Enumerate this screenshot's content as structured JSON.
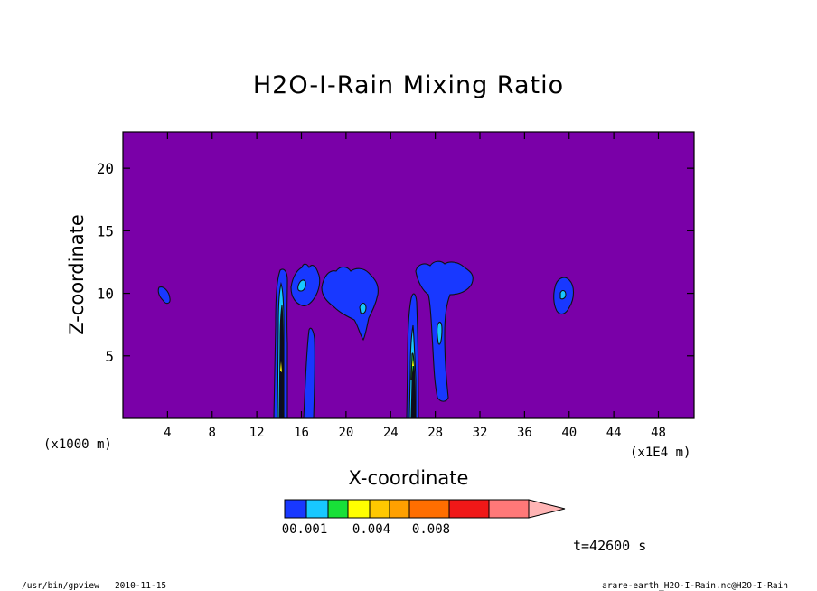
{
  "chart_data": {
    "type": "heatmap",
    "title": "H2O-I-Rain Mixing Ratio",
    "xlabel": "X-coordinate",
    "ylabel": "Z-coordinate",
    "x_unit_left": "(x1000 m)",
    "x_unit_right": "(x1E4 m)",
    "xlim": [
      0,
      51.2
    ],
    "ylim": [
      0,
      22.9
    ],
    "x_ticks": [
      4,
      8,
      12,
      16,
      20,
      24,
      28,
      32,
      36,
      40,
      44,
      48
    ],
    "y_ticks": [
      5,
      10,
      15,
      20
    ],
    "background_color": "#7a00a8",
    "colorbar": {
      "colors": [
        "#1838ff",
        "#18c8ff",
        "#18e038",
        "#ffff00",
        "#ffc800",
        "#ffa000",
        "#ff6e00",
        "#f01818",
        "#ff7878",
        "#ffb4b4"
      ],
      "labels": [
        "00.001",
        "0.004",
        "0.008"
      ],
      "label_values": [
        0.001,
        0.004,
        0.008
      ],
      "extend": "max"
    },
    "features": [
      {
        "x": 3.8,
        "z": 10.0,
        "value": 0.001
      },
      {
        "x": 14.0,
        "z": 6.0,
        "value": 0.006
      },
      {
        "x": 16.5,
        "z": 6.0,
        "value": 0.001
      },
      {
        "x": 16.3,
        "z": 11.0,
        "value": 0.001
      },
      {
        "x": 21.0,
        "z": 10.5,
        "value": 0.001
      },
      {
        "x": 25.8,
        "z": 5.0,
        "value": 0.008
      },
      {
        "x": 28.5,
        "z": 8.0,
        "value": 0.001
      },
      {
        "x": 39.5,
        "z": 10.0,
        "value": 0.001
      }
    ]
  },
  "time_label": "t=42600 s",
  "footer_left": "/usr/bin/gpview   2010-11-15",
  "footer_right": "arare-earth_H2O-I-Rain.nc@H2O-I-Rain"
}
